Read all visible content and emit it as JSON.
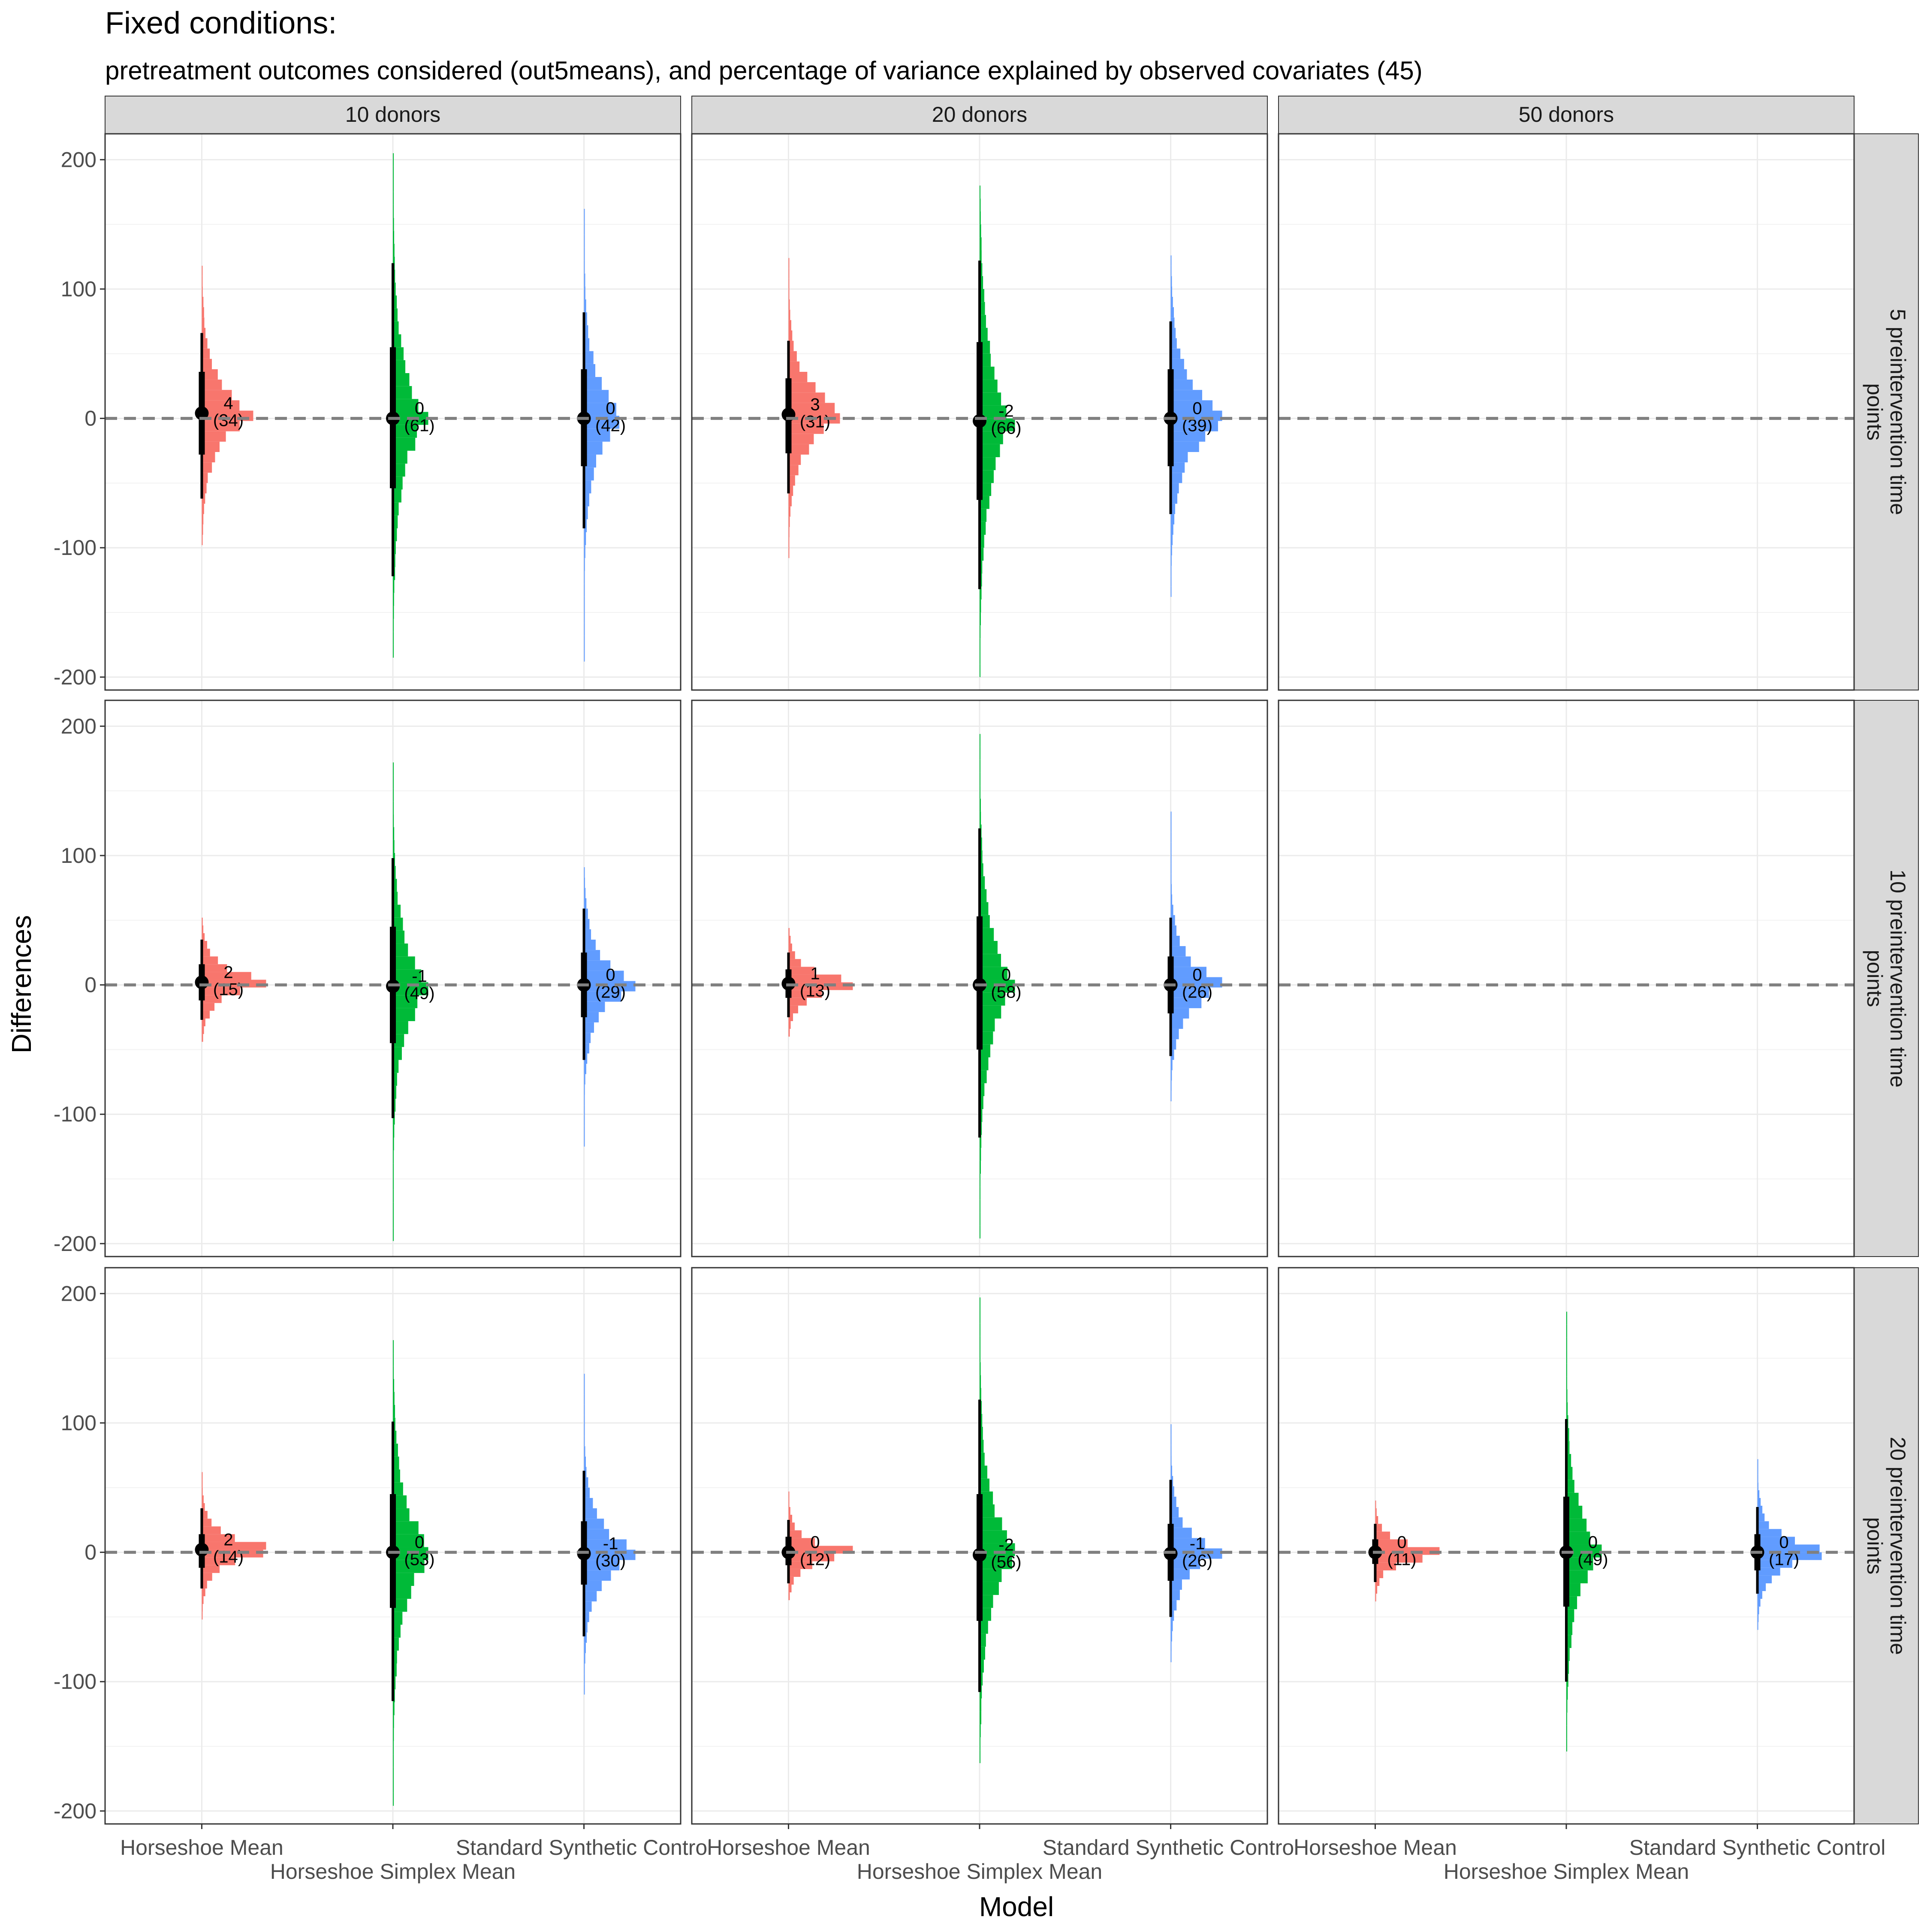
{
  "chart_data": {
    "type": "violin-histogram",
    "title": "Fixed conditions:",
    "subtitle": "pretreatment outcomes considered (out5means), and percentage of variance explained by observed covariates (45)",
    "xlabel": "Model",
    "ylabel": "Differences",
    "ylim": [
      -210,
      220
    ],
    "yticks": [
      -200,
      -100,
      0,
      100,
      200
    ],
    "grid": true,
    "reference_line_y": 0,
    "categories": [
      "Horseshoe Mean",
      "Horseshoe Simplex Mean",
      "Standard Synthetic Control"
    ],
    "category_colors": {
      "Horseshoe Mean": "#F8766D",
      "Horseshoe Simplex Mean": "#00BA38",
      "Standard Synthetic Control": "#619CFF"
    },
    "columns": [
      "10 donors",
      "20 donors",
      "50 donors"
    ],
    "rows": [
      "5 preintervention time\npoints",
      "10 preintervention time\npoints",
      "20 preintervention time\npoints"
    ],
    "panels": [
      {
        "column": "10 donors",
        "row": "5 preintervention time\npoints",
        "series": [
          {
            "model": "Horseshoe Mean",
            "median": 4,
            "spread": 34,
            "median_label": "4",
            "spread_label": "(34)",
            "q025": -62,
            "q25": -28,
            "q75": 36,
            "q975": 66,
            "min": -98,
            "max": 117
          },
          {
            "model": "Horseshoe Simplex Mean",
            "median": 0,
            "spread": 61,
            "median_label": "0",
            "spread_label": "(61)",
            "q025": -122,
            "q25": -54,
            "q75": 55,
            "q975": 120,
            "min": -185,
            "max": 200
          },
          {
            "model": "Standard Synthetic Control",
            "median": 0,
            "spread": 42,
            "median_label": "0",
            "spread_label": "(42)",
            "q025": -85,
            "q25": -37,
            "q75": 38,
            "q975": 82,
            "min": -188,
            "max": 162
          }
        ]
      },
      {
        "column": "20 donors",
        "row": "5 preintervention time\npoints",
        "series": [
          {
            "model": "Horseshoe Mean",
            "median": 3,
            "spread": 31,
            "median_label": "3",
            "spread_label": "(31)",
            "q025": -58,
            "q25": -27,
            "q75": 31,
            "q975": 60,
            "min": -108,
            "max": 117
          },
          {
            "model": "Horseshoe Simplex Mean",
            "median": -2,
            "spread": 66,
            "median_label": "-2",
            "spread_label": "(66)",
            "q025": -132,
            "q25": -63,
            "q75": 59,
            "q975": 122,
            "min": -200,
            "max": 175
          },
          {
            "model": "Standard Synthetic Control",
            "median": 0,
            "spread": 39,
            "median_label": "0",
            "spread_label": "(39)",
            "q025": -74,
            "q25": -37,
            "q75": 38,
            "q975": 75,
            "min": -138,
            "max": 126
          }
        ]
      },
      {
        "column": "50 donors",
        "row": "5 preintervention time\npoints",
        "series": []
      },
      {
        "column": "10 donors",
        "row": "10 preintervention time\npoints",
        "series": [
          {
            "model": "Horseshoe Mean",
            "median": 2,
            "spread": 15,
            "median_label": "2",
            "spread_label": "(15)",
            "q025": -27,
            "q25": -12,
            "q75": 16,
            "q975": 35,
            "min": -44,
            "max": 50
          },
          {
            "model": "Horseshoe Simplex Mean",
            "median": -1,
            "spread": 49,
            "median_label": "-1",
            "spread_label": "(49)",
            "q025": -103,
            "q25": -45,
            "q75": 45,
            "q975": 98,
            "min": -198,
            "max": 165
          },
          {
            "model": "Standard Synthetic Control",
            "median": 0,
            "spread": 29,
            "median_label": "0",
            "spread_label": "(29)",
            "q025": -58,
            "q25": -25,
            "q75": 25,
            "q975": 59,
            "min": -125,
            "max": 87
          }
        ]
      },
      {
        "column": "20 donors",
        "row": "10 preintervention time\npoints",
        "series": [
          {
            "model": "Horseshoe Mean",
            "median": 1,
            "spread": 13,
            "median_label": "1",
            "spread_label": "(13)",
            "q025": -25,
            "q25": -10,
            "q75": 12,
            "q975": 25,
            "min": -40,
            "max": 43
          },
          {
            "model": "Horseshoe Simplex Mean",
            "median": 0,
            "spread": 58,
            "median_label": "0",
            "spread_label": "(58)",
            "q025": -118,
            "q25": -50,
            "q75": 53,
            "q975": 121,
            "min": -196,
            "max": 186
          },
          {
            "model": "Standard Synthetic Control",
            "median": 0,
            "spread": 26,
            "median_label": "0",
            "spread_label": "(26)",
            "q025": -55,
            "q25": -22,
            "q75": 22,
            "q975": 52,
            "min": -90,
            "max": 132
          }
        ]
      },
      {
        "column": "50 donors",
        "row": "10 preintervention time\npoints",
        "series": []
      },
      {
        "column": "10 donors",
        "row": "20 preintervention time\npoints",
        "series": [
          {
            "model": "Horseshoe Mean",
            "median": 2,
            "spread": 14,
            "median_label": "2",
            "spread_label": "(14)",
            "q025": -28,
            "q25": -12,
            "q75": 14,
            "q975": 34,
            "min": -52,
            "max": 58
          },
          {
            "model": "Horseshoe Simplex Mean",
            "median": 0,
            "spread": 53,
            "median_label": "0",
            "spread_label": "(53)",
            "q025": -115,
            "q25": -43,
            "q75": 45,
            "q975": 101,
            "min": -196,
            "max": 160
          },
          {
            "model": "Standard Synthetic Control",
            "median": -1,
            "spread": 30,
            "median_label": "-1",
            "spread_label": "(30)",
            "q025": -65,
            "q25": -25,
            "q75": 24,
            "q975": 63,
            "min": -110,
            "max": 137
          }
        ]
      },
      {
        "column": "20 donors",
        "row": "20 preintervention time\npoints",
        "series": [
          {
            "model": "Horseshoe Mean",
            "median": 0,
            "spread": 12,
            "median_label": "0",
            "spread_label": "(12)",
            "q025": -24,
            "q25": -10,
            "q75": 12,
            "q975": 25,
            "min": -37,
            "max": 43
          },
          {
            "model": "Horseshoe Simplex Mean",
            "median": -2,
            "spread": 56,
            "median_label": "-2",
            "spread_label": "(56)",
            "q025": -108,
            "q25": -53,
            "q75": 45,
            "q975": 118,
            "min": -163,
            "max": 196
          },
          {
            "model": "Standard Synthetic Control",
            "median": -1,
            "spread": 26,
            "median_label": "-1",
            "spread_label": "(26)",
            "q025": -50,
            "q25": -22,
            "q75": 22,
            "q975": 56,
            "min": -85,
            "max": 98
          }
        ]
      },
      {
        "column": "50 donors",
        "row": "20 preintervention time\npoints",
        "series": [
          {
            "model": "Horseshoe Mean",
            "median": 0,
            "spread": 11,
            "median_label": "0",
            "spread_label": "(11)",
            "q025": -23,
            "q25": -9,
            "q75": 10,
            "q975": 22,
            "min": -38,
            "max": 35
          },
          {
            "model": "Horseshoe Simplex Mean",
            "median": 0,
            "spread": 49,
            "median_label": "0",
            "spread_label": "(49)",
            "q025": -100,
            "q25": -42,
            "q75": 43,
            "q975": 103,
            "min": -154,
            "max": 180
          },
          {
            "model": "Standard Synthetic Control",
            "median": 0,
            "spread": 17,
            "median_label": "0",
            "spread_label": "(17)",
            "q025": -32,
            "q25": -14,
            "q75": 14,
            "q975": 35,
            "min": -60,
            "max": 70
          }
        ]
      }
    ]
  }
}
